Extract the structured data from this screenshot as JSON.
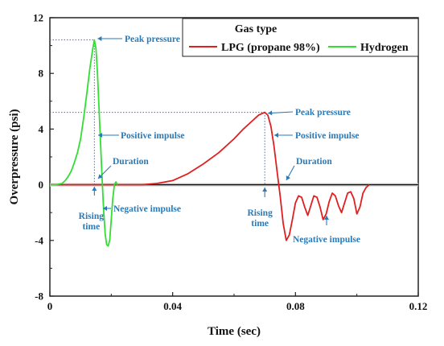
{
  "chart_data": {
    "type": "line",
    "xlabel": "Time (sec)",
    "ylabel": "Overpressure (psi)",
    "xlim": [
      0,
      0.12
    ],
    "ylim": [
      -8,
      12
    ],
    "xticks": [
      "0",
      "0.04",
      "0.08",
      "0.12"
    ],
    "yticks": [
      "-8",
      "-4",
      "0",
      "4",
      "8",
      "12"
    ],
    "grid": false,
    "legend": {
      "title": "Gas type",
      "placement": "top-right",
      "entries": [
        "LPG (propane 98%)",
        "Hydrogen"
      ]
    },
    "series": [
      {
        "name": "LPG (propane 98%)",
        "color": "#e02020",
        "x": [
          0,
          0.005,
          0.01,
          0.015,
          0.02,
          0.025,
          0.03,
          0.035,
          0.04,
          0.045,
          0.05,
          0.055,
          0.06,
          0.063,
          0.066,
          0.068,
          0.07,
          0.071,
          0.072,
          0.073,
          0.074,
          0.075,
          0.076,
          0.077,
          0.078,
          0.079,
          0.08,
          0.081,
          0.082,
          0.083,
          0.084,
          0.085,
          0.086,
          0.087,
          0.088,
          0.089,
          0.09,
          0.091,
          0.092,
          0.093,
          0.094,
          0.095,
          0.096,
          0.097,
          0.098,
          0.099,
          0.1,
          0.101,
          0.102,
          0.103,
          0.104
        ],
        "y": [
          0,
          0,
          0,
          0,
          0,
          0,
          0,
          0.1,
          0.3,
          0.8,
          1.5,
          2.3,
          3.3,
          4.0,
          4.6,
          5.0,
          5.2,
          5.0,
          4.2,
          2.8,
          1.0,
          -0.8,
          -2.8,
          -4.0,
          -3.6,
          -2.5,
          -1.3,
          -0.8,
          -0.9,
          -1.6,
          -2.2,
          -1.5,
          -0.8,
          -0.9,
          -1.6,
          -2.5,
          -2.1,
          -1.2,
          -0.6,
          -0.8,
          -1.5,
          -2.0,
          -1.3,
          -0.6,
          -0.5,
          -1.0,
          -2.1,
          -1.6,
          -0.6,
          -0.2,
          0
        ]
      },
      {
        "name": "Hydrogen",
        "color": "#33dd33",
        "x": [
          0,
          0.002,
          0.004,
          0.005,
          0.006,
          0.007,
          0.008,
          0.009,
          0.01,
          0.011,
          0.012,
          0.013,
          0.014,
          0.0145,
          0.015,
          0.0155,
          0.016,
          0.0165,
          0.017,
          0.0175,
          0.018,
          0.0185,
          0.019,
          0.0195,
          0.02,
          0.0205,
          0.021,
          0.0215,
          0.022
        ],
        "y": [
          0,
          0,
          0.1,
          0.3,
          0.6,
          1.0,
          1.6,
          2.3,
          3.3,
          4.8,
          6.5,
          8.3,
          9.8,
          10.4,
          9.8,
          8.0,
          5.5,
          3.0,
          0.5,
          -1.8,
          -3.5,
          -4.3,
          -4.4,
          -4.0,
          -2.5,
          -1.0,
          0,
          0.2,
          0
        ]
      }
    ],
    "annotations": [
      "Peak pressure",
      "Positive impulse",
      "Duration",
      "Rising time",
      "Negative impulse",
      "Peak pressure",
      "Positive impulse",
      "Duration",
      "Rising time",
      "Negative impulse"
    ]
  }
}
